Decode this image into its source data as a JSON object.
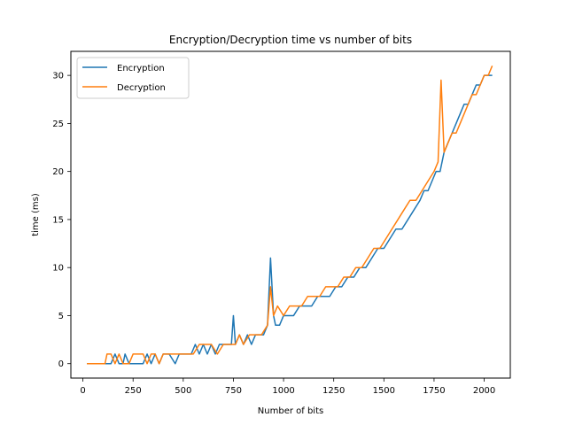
{
  "chart_data": {
    "type": "line",
    "title": "Encryption/Decryption time vs number of bits",
    "xlabel": "Number of bits",
    "ylabel": "time (ms)",
    "xlim": [
      -60,
      2130
    ],
    "ylim": [
      -1.5,
      32.5
    ],
    "xticks": [
      0,
      250,
      500,
      750,
      1000,
      1250,
      1500,
      1750,
      2000
    ],
    "yticks": [
      0,
      5,
      10,
      15,
      20,
      25,
      30
    ],
    "legend_position": "top-left",
    "grid": false,
    "series": [
      {
        "name": "Encryption",
        "color": "#1f77b4",
        "x": [
          20,
          50,
          80,
          100,
          120,
          140,
          160,
          180,
          200,
          210,
          230,
          250,
          270,
          300,
          320,
          340,
          360,
          380,
          400,
          430,
          460,
          480,
          500,
          520,
          540,
          560,
          580,
          600,
          620,
          640,
          660,
          680,
          700,
          720,
          740,
          750,
          760,
          780,
          800,
          820,
          840,
          860,
          880,
          900,
          920,
          935,
          950,
          960,
          980,
          1000,
          1020,
          1050,
          1080,
          1110,
          1140,
          1170,
          1200,
          1230,
          1260,
          1290,
          1320,
          1350,
          1380,
          1410,
          1440,
          1470,
          1500,
          1530,
          1560,
          1590,
          1620,
          1650,
          1680,
          1700,
          1720,
          1740,
          1760,
          1780,
          1800,
          1820,
          1840,
          1860,
          1880,
          1900,
          1920,
          1940,
          1960,
          1980,
          2000,
          2020,
          2040
        ],
        "values": [
          0,
          0,
          0,
          0,
          0,
          0,
          1,
          0,
          0,
          1,
          0,
          0,
          0,
          0,
          1,
          0,
          1,
          0,
          1,
          1,
          0,
          1,
          1,
          1,
          1,
          2,
          1,
          2,
          1,
          2,
          1,
          2,
          2,
          2,
          2,
          5,
          2,
          3,
          2,
          3,
          2,
          3,
          3,
          3,
          4,
          11,
          5,
          4,
          4,
          5,
          5,
          5,
          6,
          6,
          6,
          7,
          7,
          7,
          8,
          8,
          9,
          9,
          10,
          10,
          11,
          12,
          12,
          13,
          14,
          14,
          15,
          16,
          17,
          18,
          18,
          19,
          20,
          20,
          22,
          23,
          24,
          25,
          26,
          27,
          27,
          28,
          29,
          29,
          30,
          30,
          30
        ]
      },
      {
        "name": "Decryption",
        "color": "#ff7f0e",
        "x": [
          20,
          50,
          80,
          110,
          120,
          140,
          160,
          180,
          200,
          230,
          250,
          270,
          300,
          320,
          340,
          360,
          380,
          400,
          430,
          460,
          490,
          520,
          550,
          580,
          610,
          640,
          670,
          700,
          730,
          760,
          780,
          800,
          830,
          860,
          890,
          920,
          935,
          950,
          970,
          1000,
          1030,
          1060,
          1090,
          1120,
          1150,
          1180,
          1210,
          1240,
          1270,
          1300,
          1330,
          1360,
          1390,
          1420,
          1450,
          1480,
          1510,
          1540,
          1570,
          1600,
          1630,
          1660,
          1690,
          1720,
          1750,
          1770,
          1785,
          1800,
          1820,
          1840,
          1860,
          1880,
          1900,
          1920,
          1940,
          1960,
          1980,
          2000,
          2020,
          2040
        ],
        "values": [
          0,
          0,
          0,
          0,
          1,
          1,
          0,
          1,
          0,
          0,
          1,
          1,
          1,
          0,
          1,
          1,
          0,
          1,
          1,
          1,
          1,
          1,
          1,
          2,
          2,
          2,
          1,
          2,
          2,
          2,
          3,
          2,
          3,
          3,
          3,
          4,
          8,
          5,
          6,
          5,
          6,
          6,
          6,
          7,
          7,
          7,
          8,
          8,
          8,
          9,
          9,
          10,
          10,
          11,
          12,
          12,
          13,
          14,
          15,
          16,
          17,
          17,
          18,
          19,
          20,
          21,
          29.5,
          22,
          23,
          24,
          24,
          25,
          26,
          27,
          28,
          28,
          29,
          30,
          30,
          31
        ]
      }
    ]
  }
}
